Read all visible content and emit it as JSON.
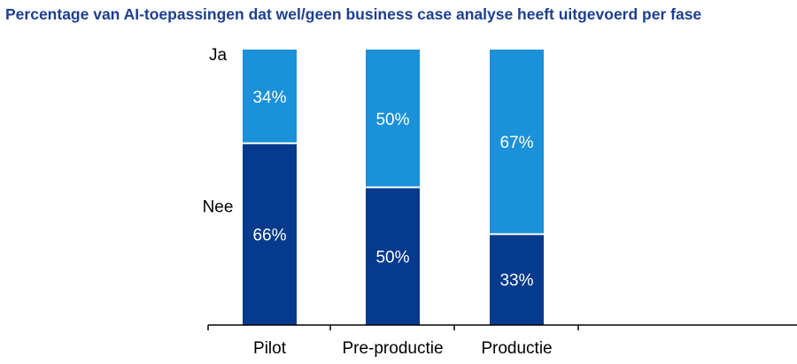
{
  "chart_data": {
    "type": "bar",
    "stacked": true,
    "title": "Percentage van AI-toepassingen dat wel/geen business case analyse heeft uitgevoerd per fase",
    "categories": [
      "Pilot",
      "Pre-productie",
      "Productie"
    ],
    "series": [
      {
        "name": "Nee",
        "values": [
          66,
          50,
          33
        ],
        "color": "#063a8c"
      },
      {
        "name": "Ja",
        "values": [
          34,
          50,
          67
        ],
        "color": "#1a91d9"
      }
    ],
    "value_format": "percent",
    "ylim": [
      0,
      100
    ],
    "grid": false,
    "legend": "left, series labels beside first bar"
  }
}
